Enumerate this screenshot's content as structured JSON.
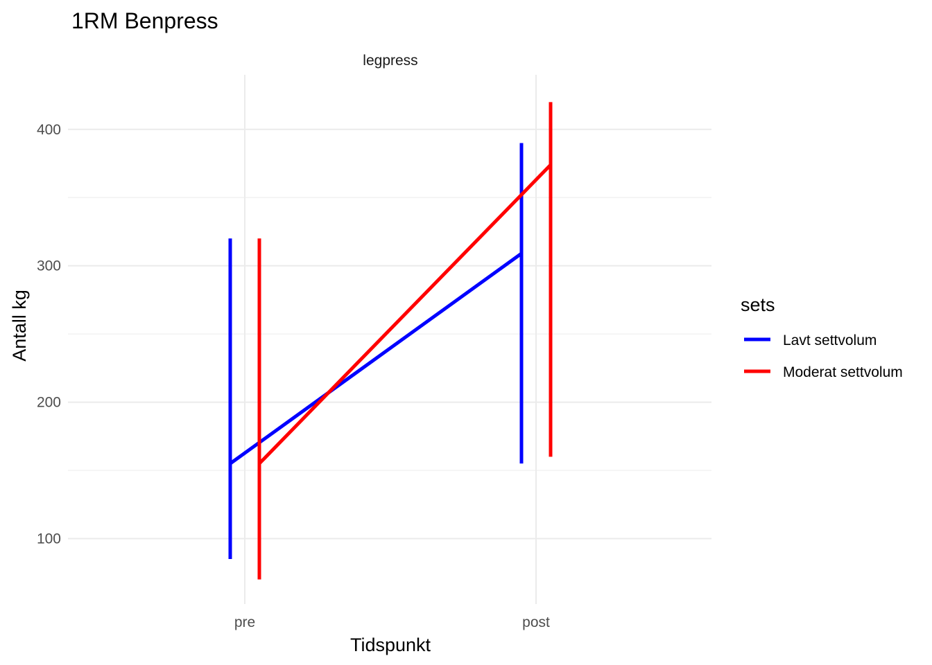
{
  "chart_data": {
    "type": "line",
    "title": "1RM Benpress",
    "facet": "legpress",
    "xlabel": "Tidspunkt",
    "ylabel": "Antall kg",
    "categories": [
      "pre",
      "post"
    ],
    "ylim": [
      52,
      440
    ],
    "yticks": [
      100,
      200,
      300,
      400
    ],
    "yticklabels": [
      "100",
      "200",
      "300",
      "400"
    ],
    "grid": true,
    "legend": {
      "title": "sets",
      "position": "right"
    },
    "series": [
      {
        "name": "Lavt settvolum",
        "color": "#0000ff",
        "mean": [
          155,
          309
        ],
        "range_low": [
          85,
          155
        ],
        "range_high": [
          320,
          390
        ]
      },
      {
        "name": "Moderat settvolum",
        "color": "#ff0000",
        "mean": [
          155,
          374
        ],
        "range_low": [
          70,
          160
        ],
        "range_high": [
          320,
          420
        ]
      }
    ]
  }
}
